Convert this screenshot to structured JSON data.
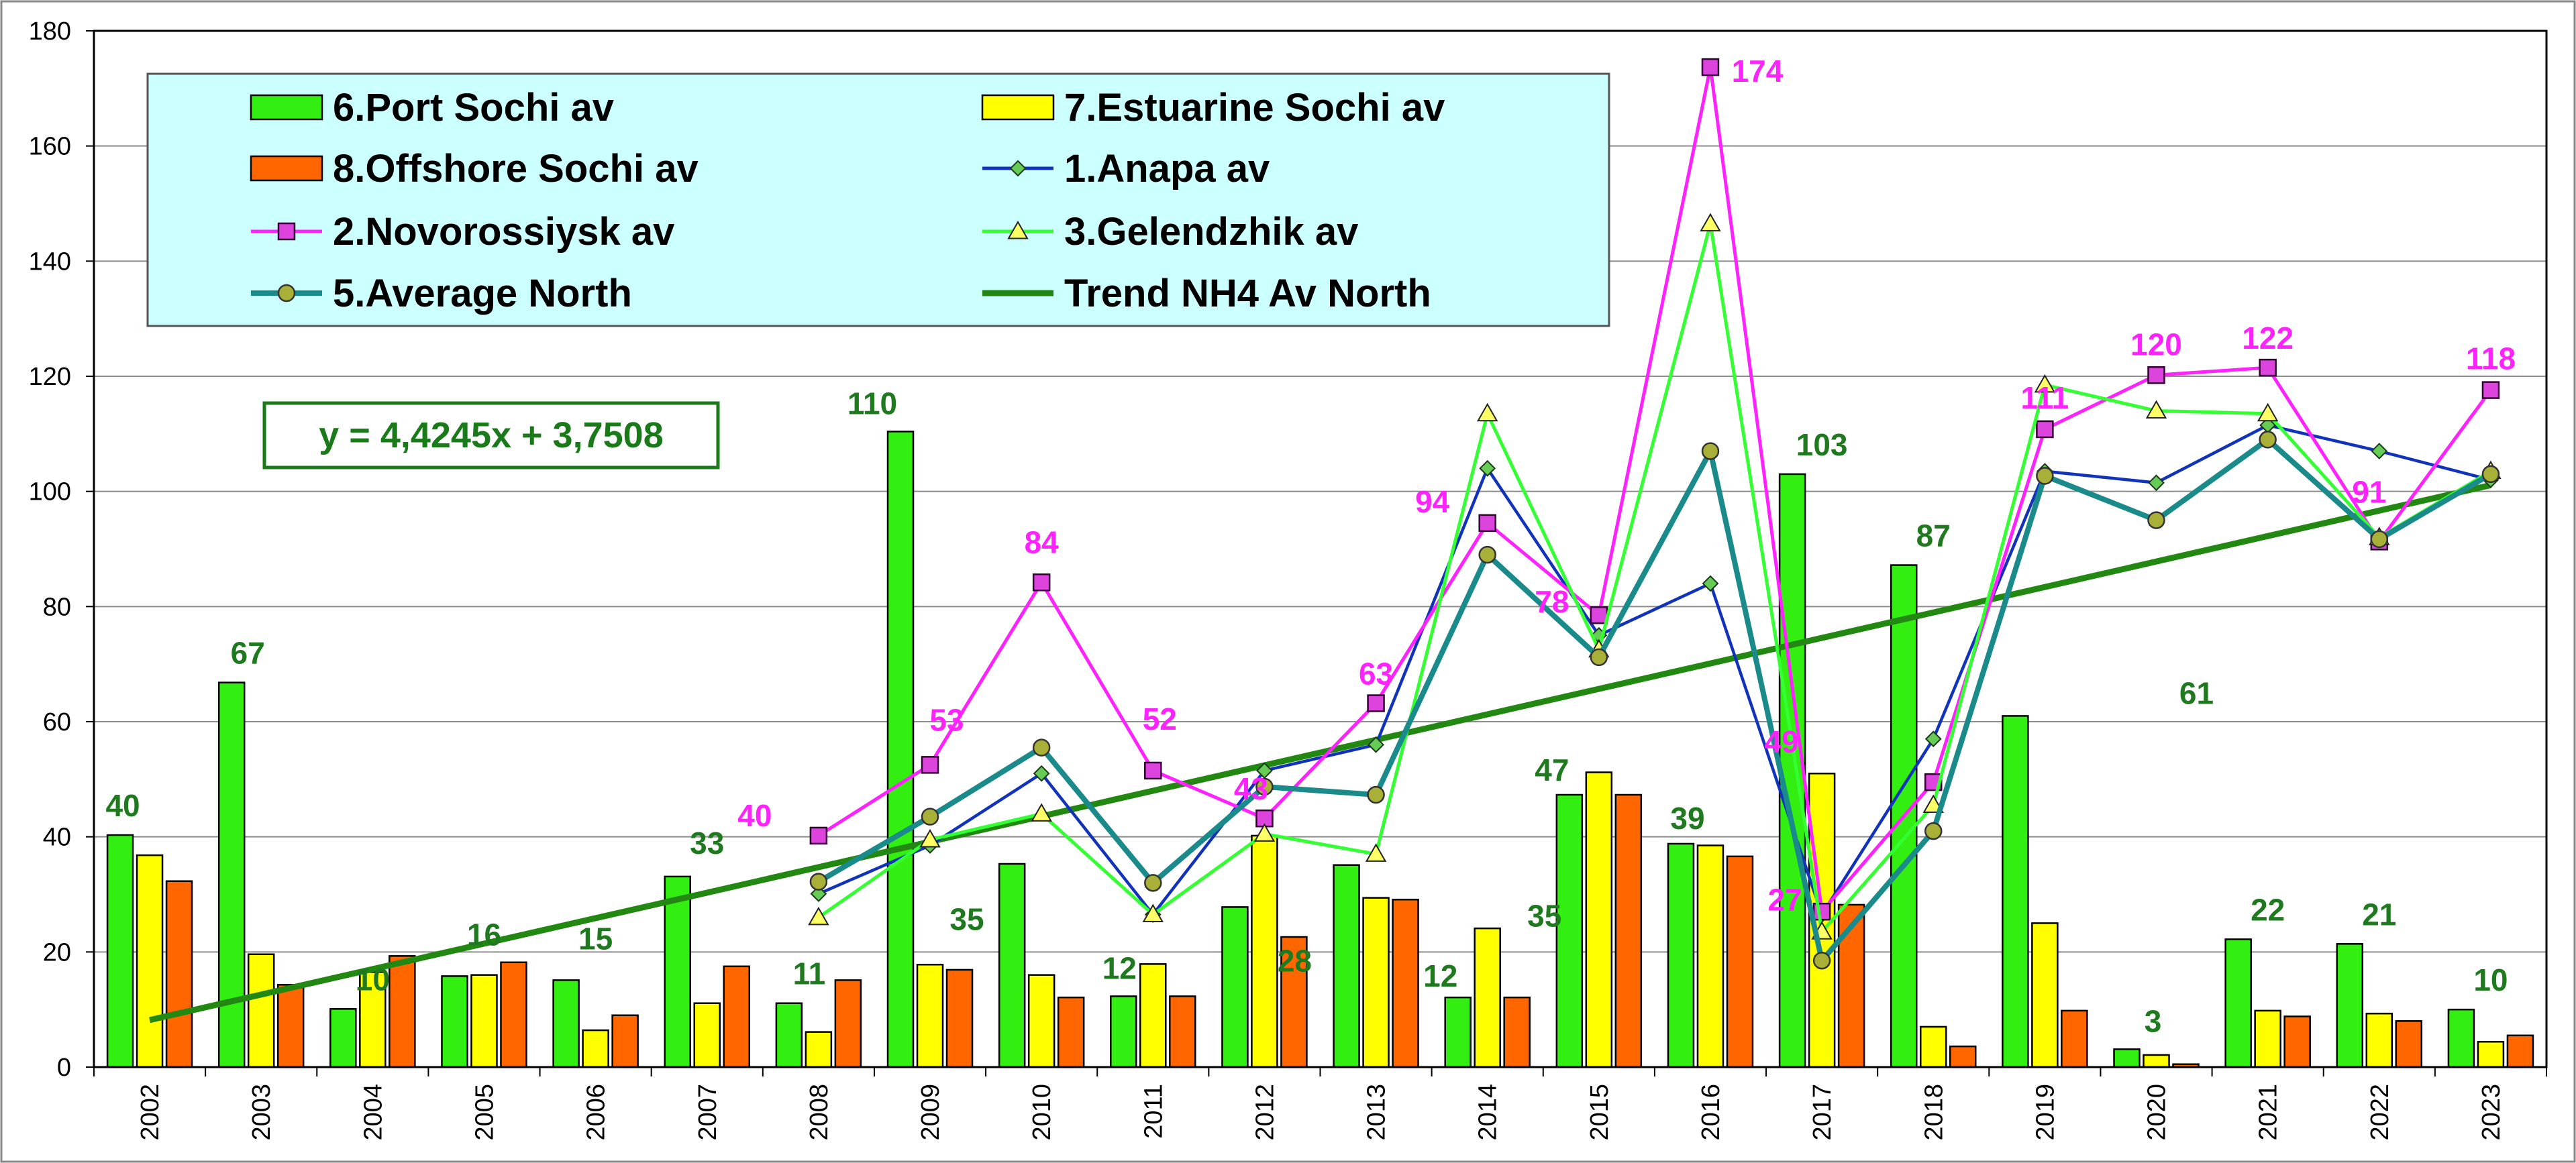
{
  "chart_data": {
    "type": "bar",
    "categories": [
      "2002",
      "2003",
      "2004",
      "2005",
      "2006",
      "2007",
      "2008",
      "2009",
      "2010",
      "2011",
      "2012",
      "2013",
      "2014",
      "2015",
      "2016",
      "2017",
      "2018",
      "2019",
      "2020",
      "2021",
      "2022",
      "2023"
    ],
    "ylim": [
      0,
      180
    ],
    "yticks": [
      0,
      20,
      40,
      60,
      80,
      100,
      120,
      140,
      160,
      180
    ],
    "grid": true,
    "legend_position": "top-left",
    "bars": [
      {
        "name": "6.Port Sochi av",
        "color": "#33ee11",
        "values": [
          40.3,
          66.8,
          10.1,
          15.8,
          15.1,
          33.1,
          11.1,
          110.4,
          35.3,
          12.3,
          27.8,
          35.1,
          12.1,
          47.3,
          38.8,
          103.0,
          87.2,
          61.0,
          3.1,
          22.2,
          21.4,
          10.0
        ]
      },
      {
        "name": "7.Estuarine Sochi av",
        "color": "#ffff00",
        "values": [
          36.8,
          19.6,
          16.5,
          16.0,
          6.4,
          11.1,
          6.1,
          17.8,
          16.0,
          17.9,
          40.2,
          29.4,
          24.1,
          51.2,
          38.5,
          51.0,
          7.0,
          25.0,
          2.1,
          9.8,
          9.3,
          4.4
        ]
      },
      {
        "name": "8.Offshore Sochi av",
        "color": "#ff6600",
        "values": [
          32.3,
          14.3,
          19.3,
          18.2,
          9.0,
          17.5,
          15.1,
          16.9,
          12.1,
          12.3,
          22.6,
          29.1,
          12.1,
          47.3,
          36.6,
          28.2,
          3.6,
          9.8,
          0.5,
          8.8,
          8.0,
          5.5
        ]
      }
    ],
    "lines": [
      {
        "name": "1.Anapa av",
        "color": "#1133bb",
        "marker": "diamond",
        "start_index": 6,
        "values": [
          30.1,
          38.5,
          51.0,
          26.5,
          51.5,
          56.0,
          104.0,
          75.0,
          84.0,
          26.5,
          57.0,
          103.5,
          101.5,
          111.5,
          107.0,
          102.0
        ]
      },
      {
        "name": "2.Novorossiysk av",
        "color": "#ff22ff",
        "marker": "square",
        "start_index": 6,
        "values": [
          40.2,
          52.5,
          84.2,
          51.5,
          43.2,
          63.2,
          94.5,
          78.5,
          173.7,
          27.0,
          49.5,
          110.8,
          120.2,
          121.5,
          91.3,
          117.6
        ]
      },
      {
        "name": "3.Gelendzhik av",
        "color": "#33ff33",
        "marker": "triangle",
        "start_index": 6,
        "values": [
          26.0,
          39.5,
          44.0,
          26.5,
          40.5,
          37.0,
          113.5,
          72.5,
          146.5,
          23.5,
          45.5,
          118.5,
          114.0,
          113.5,
          92.0,
          103.5
        ]
      },
      {
        "name": "5.Average North",
        "color": "#1a8a8a",
        "marker": "circle",
        "start_index": 6,
        "values": [
          32.2,
          43.5,
          55.5,
          32.0,
          48.7,
          47.3,
          89.0,
          71.2,
          107.0,
          18.5,
          41.0,
          102.7,
          95.0,
          109.0,
          91.7,
          103.0
        ]
      }
    ],
    "trend": {
      "name": "Trend NH4 Av North",
      "color": "#228811",
      "equation": "y = 4,4245x + 3,7508",
      "slope": 4.4245,
      "intercept": 3.7508
    },
    "legend_order": [
      "6.Port Sochi av",
      "7.Estuarine Sochi av",
      "8.Offshore Sochi av",
      "1.Anapa av",
      "2.Novorossiysk av",
      "3.Gelendzhik av",
      "5.Average North",
      "Trend NH4 Av North"
    ],
    "green_labels": [
      {
        "text": "40",
        "index": 0,
        "value": 40.3
      },
      {
        "text": "67",
        "index": 1,
        "value": 66.8
      },
      {
        "text": "10",
        "index": 2,
        "value": 10.1
      },
      {
        "text": "16",
        "index": 3,
        "value": 15.8
      },
      {
        "text": "15",
        "index": 4,
        "value": 15.1
      },
      {
        "text": "33",
        "index": 5,
        "value": 33.1
      },
      {
        "text": "11",
        "index": 6,
        "value": 11.1
      },
      {
        "text": "110",
        "index": 7,
        "value": 110.4
      },
      {
        "text": "35",
        "index": 7,
        "value": 35.0
      },
      {
        "text": "12",
        "index": 9,
        "value": 12.3
      },
      {
        "text": "28",
        "index": 10,
        "value": 27.8
      },
      {
        "text": "35",
        "index": 12,
        "value": 35.1
      },
      {
        "text": "12",
        "index": 12,
        "value": 12.1
      },
      {
        "text": "47",
        "index": 13,
        "value": 47.3
      },
      {
        "text": "39",
        "index": 14,
        "value": 38.8
      },
      {
        "text": "103",
        "index": 15,
        "value": 103.0
      },
      {
        "text": "87",
        "index": 16,
        "value": 87.2
      },
      {
        "text": "61",
        "index": 18,
        "value": 61.0
      },
      {
        "text": "3",
        "index": 18,
        "value": 3.1
      },
      {
        "text": "22",
        "index": 19,
        "value": 22.2
      },
      {
        "text": "21",
        "index": 20,
        "value": 21.4
      },
      {
        "text": "10",
        "index": 21,
        "value": 10.0
      }
    ],
    "magenta_labels": [
      {
        "text": "40",
        "index": 6,
        "value": 40.2
      },
      {
        "text": "53",
        "index": 7,
        "value": 52.5
      },
      {
        "text": "84",
        "index": 8,
        "value": 84.2
      },
      {
        "text": "52",
        "index": 9,
        "value": 51.5
      },
      {
        "text": "43",
        "index": 10,
        "value": 43.2
      },
      {
        "text": "63",
        "index": 11,
        "value": 63.2
      },
      {
        "text": "94",
        "index": 12,
        "value": 94.5
      },
      {
        "text": "78",
        "index": 13,
        "value": 78.5
      },
      {
        "text": "174",
        "index": 14,
        "value": 173.7
      },
      {
        "text": "49",
        "index": 15,
        "value": 49.5
      },
      {
        "text": "27",
        "index": 15,
        "value": 27.0
      },
      {
        "text": "111",
        "index": 17,
        "value": 110.8
      },
      {
        "text": "120",
        "index": 18,
        "value": 120.2
      },
      {
        "text": "122",
        "index": 19,
        "value": 121.5
      },
      {
        "text": "91",
        "index": 20,
        "value": 91.3
      },
      {
        "text": "118",
        "index": 21,
        "value": 117.6
      }
    ]
  }
}
